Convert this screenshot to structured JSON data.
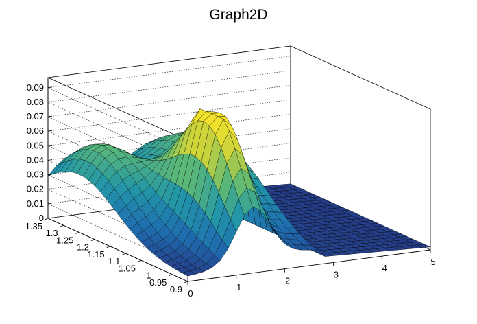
{
  "chart_data": {
    "type": "surface",
    "title": "Graph2D",
    "xlabel": "",
    "ylabel": "",
    "zlabel": "",
    "x_range": [
      0,
      5
    ],
    "y_range": [
      0.9,
      1.35
    ],
    "z_range": [
      0,
      0.097
    ],
    "x_ticks": [
      "0",
      "1",
      "2",
      "3",
      "4",
      "5"
    ],
    "y_ticks": [
      "0.9",
      "0.95",
      "1",
      "1.05",
      "1.1",
      "1.15",
      "1.2",
      "1.25",
      "1.3",
      "1.35"
    ],
    "z_ticks": [
      "0",
      "0.01",
      "0.02",
      "0.03",
      "0.04",
      "0.05",
      "0.06",
      "0.07",
      "0.08",
      "0.09"
    ],
    "grid": true,
    "colormap": "viridis",
    "peaks": [
      {
        "x": 1.35,
        "y": 1.02,
        "z": 0.091
      },
      {
        "x": 0.5,
        "y": 1.25,
        "z": 0.052
      },
      {
        "x": 2.2,
        "y": 1.3,
        "z": 0.032
      },
      {
        "x": 2.6,
        "y": 1.15,
        "z": 0.034
      }
    ]
  }
}
